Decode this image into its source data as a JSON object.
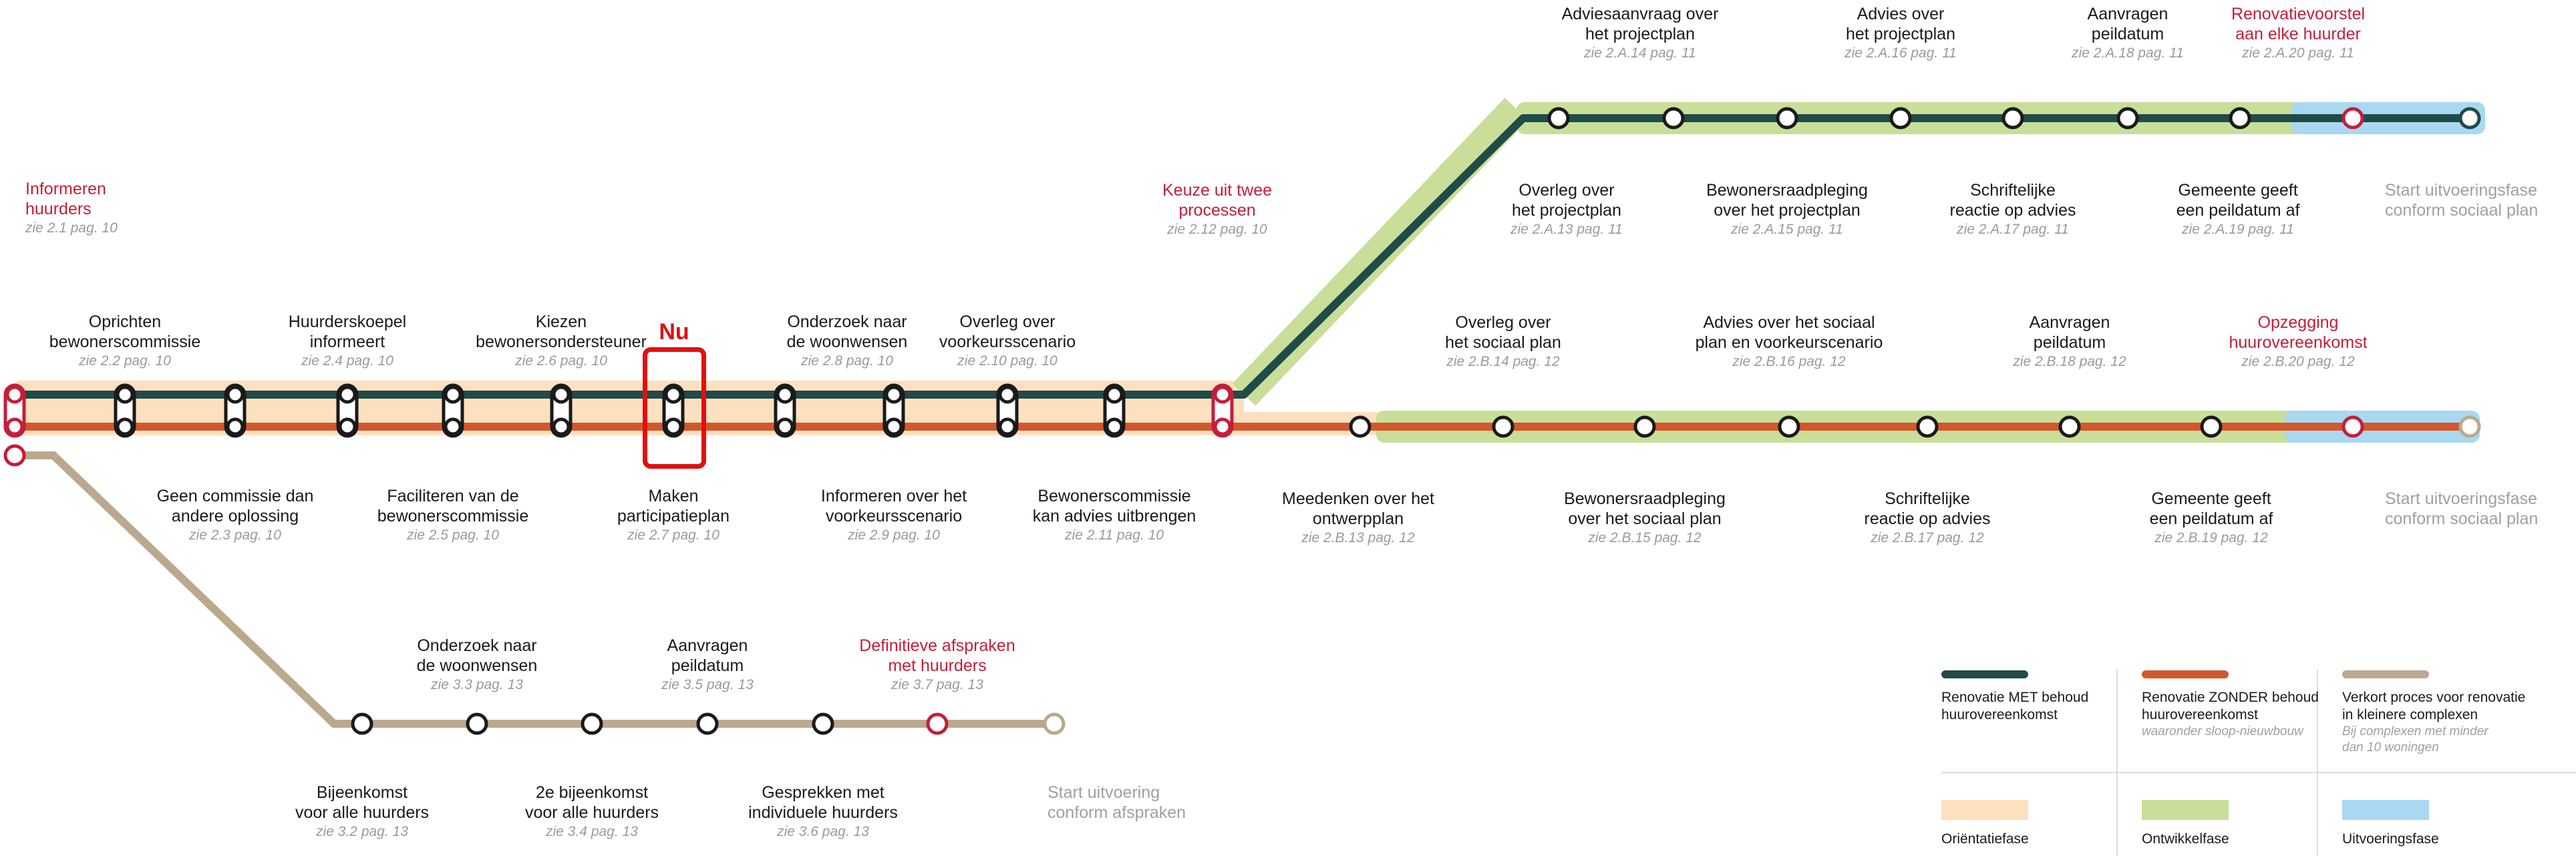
{
  "colors": {
    "line_met": "#1f4b49",
    "line_zonder": "#d4572c",
    "line_verkort": "#bba98e",
    "phase_orientatie": "#fde0c0",
    "phase_ontwikkel": "#c9de98",
    "phase_uitvoering": "#a9d8f2",
    "accent_red": "#c41e3a",
    "now_marker": "#e01010"
  },
  "now_marker": {
    "label": "Nu"
  },
  "main": {
    "start": {
      "title": "Informeren\nhuurders",
      "ref": "zie 2.1  pag. 10"
    },
    "top_labels": [
      {
        "title": "Oprichten\nbewonerscommissie",
        "ref": "zie 2.2  pag. 10"
      },
      {
        "title": "Huurderskoepel\ninformeert",
        "ref": "zie 2.4  pag. 10"
      },
      {
        "title": "Kiezen\nbewonersondersteuner",
        "ref": "zie 2.6  pag. 10"
      },
      {
        "title": "Onderzoek naar\nde woonwensen",
        "ref": "zie 2.8  pag. 10"
      },
      {
        "title": "Overleg over\nvoorkeursscenario",
        "ref": "zie 2.10  pag. 10"
      }
    ],
    "bottom_labels": [
      {
        "title": "Geen commissie dan\nandere oplossing",
        "ref": "zie 2.3  pag. 10"
      },
      {
        "title": "Faciliteren van de\nbewonerscommissie",
        "ref": "zie 2.5  pag. 10"
      },
      {
        "title": "Maken\nparticipatieplan",
        "ref": "zie 2.7  pag. 10"
      },
      {
        "title": "Informeren over het\nvoorkeursscenario",
        "ref": "zie 2.9  pag. 10"
      },
      {
        "title": "Bewonerscommissie\nkan advies uitbrengen",
        "ref": "zie 2.11  pag. 10"
      }
    ],
    "split": {
      "title": "Keuze uit twee\nprocessen",
      "ref": "zie 2.12  pag. 10"
    }
  },
  "track_a": {
    "top_labels": [
      {
        "title": "Adviesaanvraag over\nhet projectplan",
        "ref": "zie 2.A.14  pag. 11"
      },
      {
        "title": "Advies over\nhet projectplan",
        "ref": "zie 2.A.16  pag. 11"
      },
      {
        "title": "Aanvragen\npeildatum",
        "ref": "zie 2.A.18  pag. 11"
      },
      {
        "title": "Renovatievoorstel\naan elke huurder",
        "ref": "zie 2.A.20  pag. 11"
      }
    ],
    "bottom_labels": [
      {
        "title": "Overleg over\nhet projectplan",
        "ref": "zie 2.A.13  pag. 11"
      },
      {
        "title": "Bewonersraadpleging\nover het projectplan",
        "ref": "zie 2.A.15  pag. 11"
      },
      {
        "title": "Schriftelijke\nreactie op advies",
        "ref": "zie 2.A.17  pag. 11"
      },
      {
        "title": "Gemeente geeft\neen peildatum af",
        "ref": "zie 2.A.19  pag. 11"
      }
    ],
    "end": {
      "title": "Start uitvoeringsfase\nconform sociaal plan"
    }
  },
  "track_b": {
    "top_labels": [
      {
        "title": "Overleg over\nhet sociaal plan",
        "ref": "zie 2.B.14  pag. 12"
      },
      {
        "title": "Advies over het sociaal\nplan en voorkeurscenario",
        "ref": "zie 2.B.16  pag. 12"
      },
      {
        "title": "Aanvragen\npeildatum",
        "ref": "zie 2.B.18  pag. 12"
      },
      {
        "title": "Opzegging\nhuurovereenkomst",
        "ref": "zie 2.B.20  pag. 12"
      }
    ],
    "bottom_labels": [
      {
        "title": "Meedenken over het\nontwerpplan",
        "ref": "zie 2.B.13  pag. 12"
      },
      {
        "title": "Bewonersraadpleging\nover het sociaal plan",
        "ref": "zie 2.B.15  pag. 12"
      },
      {
        "title": "Schriftelijke\nreactie op advies",
        "ref": "zie 2.B.17  pag. 12"
      },
      {
        "title": "Gemeente geeft\neen peildatum af",
        "ref": "zie 2.B.19  pag. 12"
      }
    ],
    "end": {
      "title": "Start uitvoeringsfase\nconform sociaal plan"
    }
  },
  "track_c": {
    "top_labels": [
      {
        "title": "Onderzoek naar\nde woonwensen",
        "ref": "zie 3.3  pag. 13"
      },
      {
        "title": "Aanvragen\npeildatum",
        "ref": "zie 3.5  pag. 13"
      },
      {
        "title": "Definitieve afspraken\nmet huurders",
        "ref": "zie 3.7  pag. 13"
      }
    ],
    "bottom_labels": [
      {
        "title": "Bijeenkomst\nvoor alle huurders",
        "ref": "zie 3.2  pag. 13"
      },
      {
        "title": "2e bijeenkomst\nvoor alle huurders",
        "ref": "zie 3.4  pag. 13"
      },
      {
        "title": "Gesprekken met\nindividuele huurders",
        "ref": "zie 3.6  pag. 13"
      }
    ],
    "end": {
      "title": "Start uitvoering\nconform afspraken"
    }
  },
  "legend": {
    "items": [
      {
        "text": "Renovatie MET behoud\nhuurovereenkomst",
        "note": ""
      },
      {
        "text": "Renovatie ZONDER behoud\nhuurovereenkomst",
        "note": "waaronder sloop-nieuwbouw"
      },
      {
        "text": "Verkort proces voor renovatie\nin kleinere complexen",
        "note": "Bij complexen met minder\ndan 10 woningen"
      },
      {
        "text": "Oriëntatiefase",
        "note": ""
      },
      {
        "text": "Ontwikkelfase",
        "note": ""
      },
      {
        "text": "Uitvoeringsfase",
        "note": ""
      }
    ]
  }
}
